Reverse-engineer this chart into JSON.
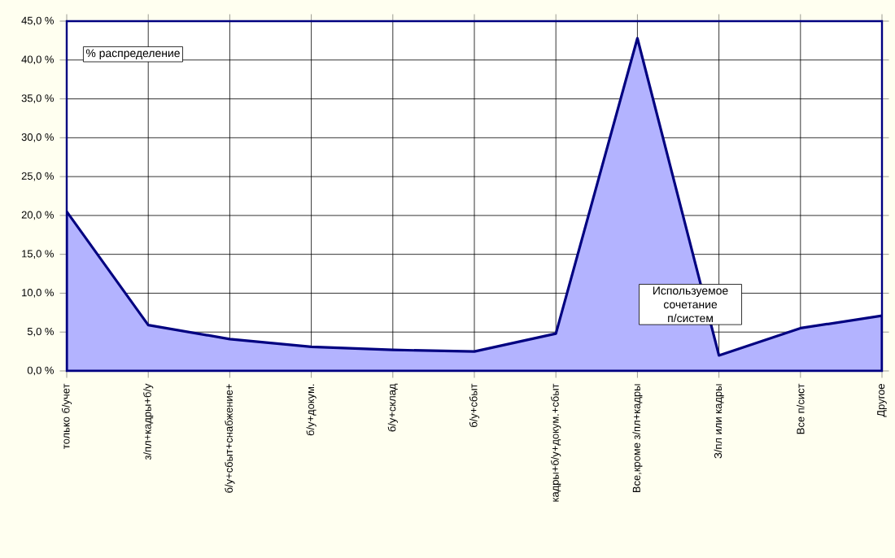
{
  "chart_data": {
    "type": "area",
    "title": "% распределение",
    "xlabel": "Используемое сочетание п/систем",
    "categories": [
      "только б/учет",
      "з/пл+кадры+б/у",
      "б/у+сбыт+снабжение+",
      "б/у+докум.",
      "б/у+склад",
      "б/у+сбыт",
      "кадры+б/у+докум.+сбыт",
      "Все,кроме з/пл+кадры",
      "З/пл или кадры",
      "Все п/сист",
      "Другое"
    ],
    "values": [
      20.5,
      5.9,
      4.1,
      3.1,
      2.7,
      2.5,
      4.8,
      42.8,
      2.0,
      5.5,
      7.1
    ],
    "color": "#b3b3ff",
    "ylim": [
      0,
      45
    ],
    "yticks": [
      {
        "value": 0,
        "label": "0,0 %"
      },
      {
        "value": 5,
        "label": "5,0 %"
      },
      {
        "value": 10,
        "label": "10,0 %"
      },
      {
        "value": 15,
        "label": "15,0 %"
      },
      {
        "value": 20,
        "label": "20,0 %"
      },
      {
        "value": 25,
        "label": "25,0 %"
      },
      {
        "value": 30,
        "label": "30,0 %"
      },
      {
        "value": 35,
        "label": "35,0 %"
      },
      {
        "value": 40,
        "label": "40,0 %"
      },
      {
        "value": 45,
        "label": "45,0 %"
      }
    ],
    "grid": true
  }
}
